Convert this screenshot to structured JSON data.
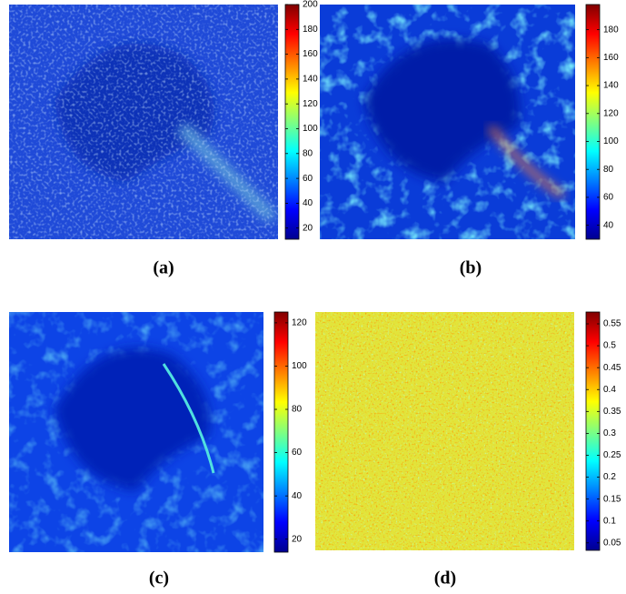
{
  "chart_data": [
    {
      "type": "heatmap",
      "caption": "(a)",
      "clim": [
        11,
        200
      ],
      "cticks": [
        20,
        40,
        60,
        80,
        100,
        120,
        140,
        160,
        180,
        200
      ]
    },
    {
      "type": "heatmap",
      "caption": "(b)",
      "clim": [
        30,
        198
      ],
      "cticks": [
        40,
        60,
        80,
        100,
        120,
        140,
        160,
        180
      ]
    },
    {
      "type": "heatmap",
      "caption": "(c)",
      "clim": [
        14,
        125
      ],
      "cticks": [
        20,
        40,
        60,
        80,
        100,
        120
      ]
    },
    {
      "type": "heatmap",
      "caption": "(d)",
      "clim": [
        0.033,
        0.577
      ],
      "cticks": [
        0.05,
        0.1,
        0.15,
        0.2,
        0.25,
        0.3,
        0.35,
        0.4,
        0.45,
        0.5,
        0.55
      ]
    }
  ]
}
